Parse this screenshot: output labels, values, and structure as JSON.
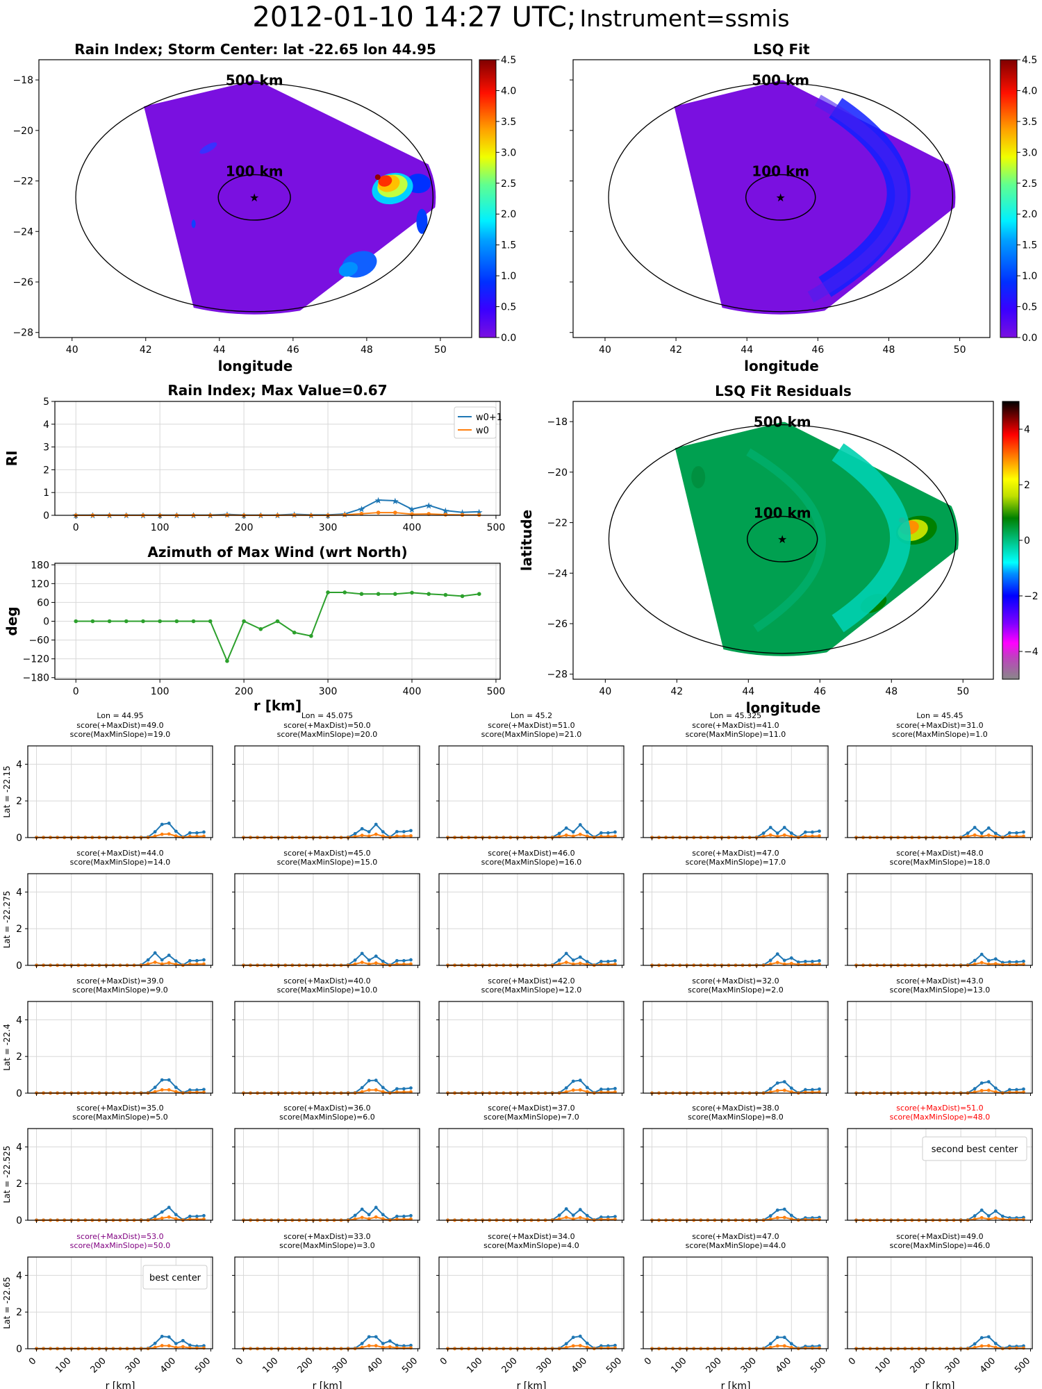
{
  "figure": {
    "title_main": "2012-01-10 14:27 UTC;",
    "title_instrument": "Instrument=ssmis"
  },
  "chart_data": [
    {
      "id": "rain-index-map",
      "type": "heatmap",
      "title": "Rain Index; Storm Center: lat -22.65 lon 44.95",
      "xlabel": "longitude",
      "ylabel": "latitude",
      "xlim": [
        39.1,
        50.85
      ],
      "ylim": [
        -28.2,
        -17.2
      ],
      "xticks": [
        40,
        42,
        44,
        46,
        48,
        50
      ],
      "yticks": [
        -18,
        -20,
        -22,
        -24,
        -26,
        -28
      ],
      "center": {
        "lat": -22.65,
        "lon": 44.95
      },
      "ring_labels": [
        "500 km",
        "100 km"
      ],
      "colorbar": {
        "colormap": "jet",
        "min": 0.0,
        "max": 4.5,
        "ticks": [
          "0.0",
          "0.5",
          "1.0",
          "1.5",
          "2.0",
          "2.5",
          "3.0",
          "3.5",
          "4.0",
          "4.5"
        ]
      },
      "features": [
        {
          "desc": "rain core",
          "lon": 48.6,
          "lat": -22.3,
          "peak": 4.3
        },
        {
          "desc": "weak band",
          "lon": 47.7,
          "lat": -25.2,
          "peak": 1.0
        },
        {
          "desc": "weak cells",
          "lon": 43.8,
          "lat": -20.8,
          "peak": 0.6
        }
      ]
    },
    {
      "id": "lsq-fit-map",
      "type": "heatmap",
      "title": "LSQ Fit",
      "xlabel": "longitude",
      "ylabel": "",
      "xlim": [
        39.1,
        50.85
      ],
      "ylim": [
        -28.2,
        -17.2
      ],
      "xticks": [
        40,
        42,
        44,
        46,
        48,
        50
      ],
      "ring_labels": [
        "500 km",
        "100 km"
      ],
      "colorbar": {
        "colormap": "jet",
        "min": 0.0,
        "max": 4.5,
        "ticks": [
          "0.0",
          "0.5",
          "1.0",
          "1.5",
          "2.0",
          "2.5",
          "3.0",
          "3.5",
          "4.0",
          "4.5"
        ]
      },
      "features": [
        {
          "desc": "arc of fitted rain at ~350-400 km east of center",
          "peak": 0.6
        }
      ]
    },
    {
      "id": "rain-index-profile",
      "type": "line",
      "title": "Rain Index; Max Value=0.67",
      "xlabel": "",
      "ylabel": "RI",
      "xlim": [
        -25,
        505
      ],
      "ylim": [
        0,
        5
      ],
      "xticks": [
        0,
        100,
        200,
        300,
        400,
        500
      ],
      "yticks": [
        0,
        1,
        2,
        3,
        4,
        5
      ],
      "grid": true,
      "legend": "top-right",
      "x": [
        0,
        20,
        40,
        60,
        80,
        100,
        120,
        140,
        160,
        180,
        200,
        220,
        240,
        260,
        280,
        300,
        320,
        340,
        360,
        380,
        400,
        420,
        440,
        460,
        480
      ],
      "series": [
        {
          "name": "w0+1",
          "color": "#1f77b4",
          "marker": "star",
          "values": [
            0.01,
            0.01,
            0.01,
            0.01,
            0.01,
            0.01,
            0.01,
            0.01,
            0.01,
            0.04,
            0.01,
            0.01,
            0.01,
            0.05,
            0.02,
            0.02,
            0.06,
            0.29,
            0.67,
            0.64,
            0.27,
            0.44,
            0.21,
            0.13,
            0.16
          ]
        },
        {
          "name": "w0",
          "color": "#ff7f0e",
          "marker": "dot",
          "values": [
            0,
            0,
            0,
            0,
            0,
            0,
            0,
            0,
            0,
            0.01,
            0,
            0,
            0,
            0.01,
            0,
            0,
            0.02,
            0.07,
            0.12,
            0.12,
            0.05,
            0.06,
            0.03,
            0.02,
            0.02
          ]
        }
      ]
    },
    {
      "id": "azimuth-profile",
      "type": "line",
      "title": "Azimuth of Max Wind (wrt North)",
      "xlabel": "r [km]",
      "ylabel": "deg",
      "xlim": [
        -25,
        505
      ],
      "ylim": [
        -185,
        185
      ],
      "xticks": [
        0,
        100,
        200,
        300,
        400,
        500
      ],
      "yticks": [
        180,
        120,
        60,
        0,
        -60,
        -120,
        -180
      ],
      "grid": true,
      "x": [
        0,
        20,
        40,
        60,
        80,
        100,
        120,
        140,
        160,
        180,
        200,
        220,
        240,
        260,
        280,
        300,
        320,
        340,
        360,
        380,
        400,
        420,
        440,
        460,
        480
      ],
      "series": [
        {
          "name": "azimuth",
          "color": "#2ca02c",
          "values": [
            0,
            0,
            0,
            0,
            0,
            0,
            0,
            0,
            0,
            -127,
            0,
            -25,
            0,
            -36,
            -47,
            92,
            92,
            87,
            87,
            87,
            91,
            87,
            84,
            80,
            87
          ]
        }
      ]
    },
    {
      "id": "lsq-residuals-map",
      "type": "heatmap",
      "title": "LSQ Fit Residuals",
      "xlabel": "longitude",
      "ylabel": "latitude",
      "xlim": [
        39.1,
        50.85
      ],
      "ylim": [
        -28.2,
        -17.2
      ],
      "xticks": [
        40,
        42,
        44,
        46,
        48,
        50
      ],
      "yticks": [
        -18,
        -20,
        -22,
        -24,
        -26,
        -28
      ],
      "ring_labels": [
        "500 km",
        "100 km"
      ],
      "colorbar": {
        "colormap": "nipy_spectral-like",
        "min": -5,
        "max": 5,
        "ticks": [
          "4",
          "2",
          "0",
          "−2",
          "−4"
        ]
      },
      "features": [
        {
          "desc": "positive residual core",
          "lon": 48.6,
          "lat": -22.3,
          "peak": 3.8
        }
      ]
    },
    {
      "id": "candidate-grid",
      "type": "line",
      "ylim": [
        0,
        5
      ],
      "yticks": [
        0,
        2,
        4
      ],
      "xticks": [
        "0",
        "100",
        "200",
        "300",
        "400",
        "500"
      ],
      "xlabel": "r [km]",
      "column_lons": [
        "Lon = 44.95",
        "Lon = 45.075",
        "Lon = 45.2",
        "Lon = 45.325",
        "Lon = 45.45"
      ],
      "row_lats": [
        "Lat = -22.15",
        "Lat = -22.275",
        "Lat = -22.4",
        "Lat = -22.525",
        "Lat = -22.65"
      ],
      "panels": [
        [
          {
            "maxdist": "score(+MaxDist)=49.0",
            "slope": "score(MaxMinSlope)=19.0",
            "peaks": [
              [
                360,
                0.72
              ],
              [
                380,
                0.78
              ],
              [
                480,
                0.3
              ]
            ]
          },
          {
            "maxdist": "score(+MaxDist)=50.0",
            "slope": "score(MaxMinSlope)=20.0",
            "peaks": [
              [
                340,
                0.48
              ],
              [
                380,
                0.72
              ],
              [
                480,
                0.38
              ]
            ]
          },
          {
            "maxdist": "score(+MaxDist)=51.0",
            "slope": "score(MaxMinSlope)=21.0",
            "peaks": [
              [
                340,
                0.52
              ],
              [
                380,
                0.7
              ],
              [
                480,
                0.3
              ]
            ]
          },
          {
            "maxdist": "score(+MaxDist)=41.0",
            "slope": "score(MaxMinSlope)=11.0",
            "peaks": [
              [
                340,
                0.55
              ],
              [
                380,
                0.55
              ],
              [
                480,
                0.35
              ]
            ]
          },
          {
            "maxdist": "score(+MaxDist)=31.0",
            "slope": "score(MaxMinSlope)=1.0",
            "peaks": [
              [
                340,
                0.55
              ],
              [
                380,
                0.52
              ],
              [
                480,
                0.3
              ]
            ]
          }
        ],
        [
          {
            "maxdist": "score(+MaxDist)=44.0",
            "slope": "score(MaxMinSlope)=14.0",
            "peaks": [
              [
                340,
                0.68
              ],
              [
                380,
                0.55
              ],
              [
                480,
                0.3
              ]
            ]
          },
          {
            "maxdist": "score(+MaxDist)=45.0",
            "slope": "score(MaxMinSlope)=15.0",
            "peaks": [
              [
                340,
                0.65
              ],
              [
                380,
                0.5
              ],
              [
                480,
                0.3
              ]
            ]
          },
          {
            "maxdist": "score(+MaxDist)=46.0",
            "slope": "score(MaxMinSlope)=16.0",
            "peaks": [
              [
                340,
                0.65
              ],
              [
                380,
                0.45
              ],
              [
                480,
                0.25
              ]
            ]
          },
          {
            "maxdist": "score(+MaxDist)=47.0",
            "slope": "score(MaxMinSlope)=17.0",
            "peaks": [
              [
                360,
                0.62
              ],
              [
                400,
                0.4
              ],
              [
                480,
                0.25
              ]
            ]
          },
          {
            "maxdist": "score(+MaxDist)=48.0",
            "slope": "score(MaxMinSlope)=18.0",
            "peaks": [
              [
                360,
                0.6
              ],
              [
                400,
                0.35
              ],
              [
                480,
                0.22
              ]
            ]
          }
        ],
        [
          {
            "maxdist": "score(+MaxDist)=39.0",
            "slope": "score(MaxMinSlope)=9.0",
            "peaks": [
              [
                360,
                0.72
              ],
              [
                380,
                0.72
              ],
              [
                480,
                0.2
              ]
            ]
          },
          {
            "maxdist": "score(+MaxDist)=40.0",
            "slope": "score(MaxMinSlope)=10.0",
            "peaks": [
              [
                360,
                0.68
              ],
              [
                380,
                0.7
              ],
              [
                480,
                0.28
              ]
            ]
          },
          {
            "maxdist": "score(+MaxDist)=42.0",
            "slope": "score(MaxMinSlope)=12.0",
            "peaks": [
              [
                360,
                0.65
              ],
              [
                380,
                0.7
              ],
              [
                480,
                0.25
              ]
            ]
          },
          {
            "maxdist": "score(+MaxDist)=32.0",
            "slope": "score(MaxMinSlope)=2.0",
            "peaks": [
              [
                360,
                0.55
              ],
              [
                380,
                0.62
              ],
              [
                480,
                0.22
              ]
            ]
          },
          {
            "maxdist": "score(+MaxDist)=43.0",
            "slope": "score(MaxMinSlope)=13.0",
            "peaks": [
              [
                360,
                0.55
              ],
              [
                380,
                0.62
              ],
              [
                480,
                0.22
              ]
            ]
          }
        ],
        [
          {
            "maxdist": "score(+MaxDist)=35.0",
            "slope": "score(MaxMinSlope)=5.0",
            "peaks": [
              [
                360,
                0.45
              ],
              [
                380,
                0.7
              ],
              [
                480,
                0.25
              ]
            ]
          },
          {
            "maxdist": "score(+MaxDist)=36.0",
            "slope": "score(MaxMinSlope)=6.0",
            "peaks": [
              [
                340,
                0.6
              ],
              [
                380,
                0.7
              ],
              [
                480,
                0.25
              ]
            ]
          },
          {
            "maxdist": "score(+MaxDist)=37.0",
            "slope": "score(MaxMinSlope)=7.0",
            "peaks": [
              [
                340,
                0.62
              ],
              [
                380,
                0.58
              ],
              [
                480,
                0.2
              ]
            ]
          },
          {
            "maxdist": "score(+MaxDist)=38.0",
            "slope": "score(MaxMinSlope)=8.0",
            "peaks": [
              [
                360,
                0.55
              ],
              [
                380,
                0.6
              ],
              [
                480,
                0.15
              ]
            ]
          },
          {
            "maxdist": "score(+MaxDist)=51.0",
            "slope": "score(MaxMinSlope)=48.0",
            "peaks": [
              [
                360,
                0.55
              ],
              [
                400,
                0.5
              ],
              [
                480,
                0.15
              ]
            ],
            "highlight": "second",
            "color": "#ff0000",
            "label": "second best center"
          }
        ],
        [
          {
            "maxdist": "score(+MaxDist)=53.0",
            "slope": "score(MaxMinSlope)=50.0",
            "peaks": [
              [
                360,
                0.67
              ],
              [
                380,
                0.64
              ],
              [
                420,
                0.44
              ],
              [
                480,
                0.16
              ]
            ],
            "highlight": "best",
            "color": "#800080",
            "label": "best center"
          },
          {
            "maxdist": "score(+MaxDist)=33.0",
            "slope": "score(MaxMinSlope)=3.0",
            "peaks": [
              [
                360,
                0.65
              ],
              [
                380,
                0.65
              ],
              [
                420,
                0.42
              ],
              [
                480,
                0.18
              ]
            ]
          },
          {
            "maxdist": "score(+MaxDist)=34.0",
            "slope": "score(MaxMinSlope)=4.0",
            "peaks": [
              [
                360,
                0.62
              ],
              [
                380,
                0.68
              ],
              [
                480,
                0.18
              ]
            ]
          },
          {
            "maxdist": "score(+MaxDist)=47.0",
            "slope": "score(MaxMinSlope)=44.0",
            "peaks": [
              [
                360,
                0.62
              ],
              [
                380,
                0.62
              ],
              [
                480,
                0.15
              ]
            ]
          },
          {
            "maxdist": "score(+MaxDist)=49.0",
            "slope": "score(MaxMinSlope)=46.0",
            "peaks": [
              [
                360,
                0.6
              ],
              [
                380,
                0.65
              ],
              [
                480,
                0.15
              ]
            ]
          }
        ]
      ]
    }
  ]
}
